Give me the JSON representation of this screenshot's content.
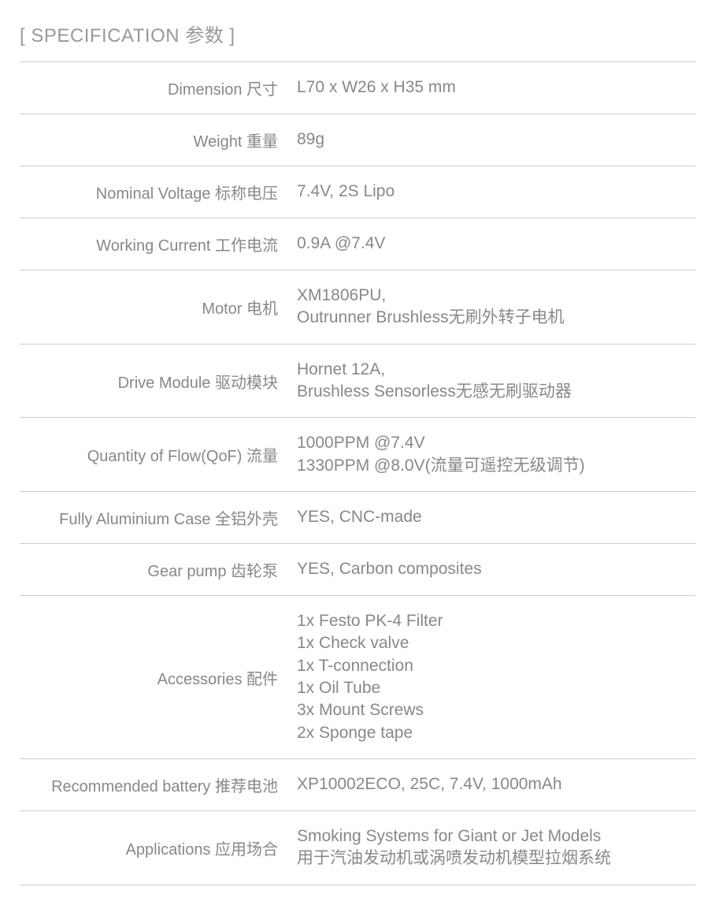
{
  "title": "[ SPECIFICATION 参数 ]",
  "rows": [
    {
      "label": "Dimension 尺寸",
      "value": "L70 x W26 x H35 mm"
    },
    {
      "label": "Weight 重量",
      "value": "89g"
    },
    {
      "label": "Nominal Voltage 标称电压",
      "value": "7.4V, 2S Lipo"
    },
    {
      "label": "Working Current 工作电流",
      "value": "0.9A @7.4V"
    },
    {
      "label": "Motor 电机",
      "value": "XM1806PU,\nOutrunner Brushless无刷外转子电机"
    },
    {
      "label": "Drive Module 驱动模块",
      "value": "Hornet 12A,\nBrushless Sensorless无感无刷驱动器"
    },
    {
      "label": "Quantity of Flow(QoF) 流量",
      "value": "1000PPM @7.4V\n1330PPM @8.0V(流量可遥控无级调节)"
    },
    {
      "label": "Fully Aluminium Case 全铝外壳",
      "value": "YES, CNC-made"
    },
    {
      "label": "Gear pump 齿轮泵",
      "value": "YES, Carbon composites"
    },
    {
      "label": "Accessories 配件",
      "value": "1x Festo PK-4 Filter\n1x Check valve\n1x T-connection\n1x Oil Tube\n3x Mount Screws\n2x  Sponge tape"
    },
    {
      "label": "Recommended battery 推荐电池",
      "value": "XP10002ECO, 25C, 7.4V, 1000mAh"
    },
    {
      "label": "Applications 应用场合",
      "value": "Smoking Systems for Giant or Jet Models\n用于汽油发动机或涡喷发动机模型拉烟系统"
    }
  ],
  "styling": {
    "background_color": "#ffffff",
    "title_color": "#999999",
    "title_fontsize": 24,
    "label_color": "#888888",
    "label_fontsize": 20,
    "value_color": "#888888",
    "value_fontsize": 21,
    "border_color": "#cccccc",
    "label_column_width": 340,
    "row_padding_vertical": 18,
    "font_family": "Arial, Microsoft YaHei, sans-serif"
  }
}
